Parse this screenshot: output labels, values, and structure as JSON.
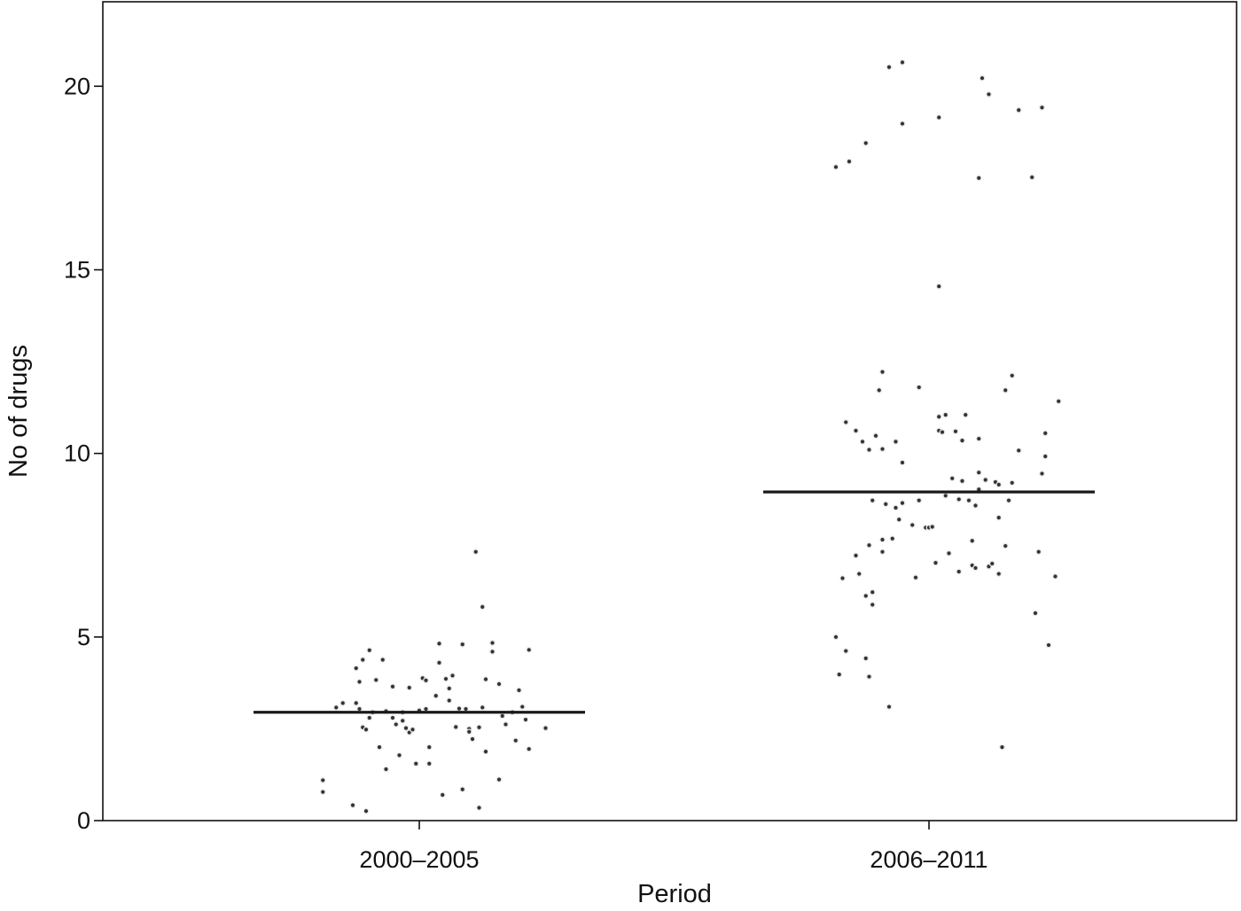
{
  "chart_data": {
    "type": "scatter",
    "title": "",
    "xlabel": "Period",
    "ylabel": "No of drugs",
    "categories": [
      "2000–2005",
      "2006–2011"
    ],
    "ylim": [
      0,
      22.3
    ],
    "y_ticks": [
      0,
      5,
      10,
      15,
      20
    ],
    "y_tick_labels": [
      "0",
      "5",
      "10",
      "15",
      "20"
    ],
    "grid": false,
    "legend": "none",
    "point_color": "#333333",
    "series": [
      {
        "category": "2000–2005",
        "median": 2.95,
        "points": [
          [
            -0.29,
            1.1
          ],
          [
            -0.29,
            0.78
          ],
          [
            -0.25,
            3.08
          ],
          [
            -0.23,
            3.2
          ],
          [
            -0.2,
            0.42
          ],
          [
            -0.19,
            4.15
          ],
          [
            -0.19,
            3.2
          ],
          [
            -0.18,
            3.04
          ],
          [
            -0.18,
            3.78
          ],
          [
            -0.17,
            2.54
          ],
          [
            -0.16,
            2.48
          ],
          [
            -0.17,
            4.38
          ],
          [
            -0.16,
            0.26
          ],
          [
            -0.15,
            4.64
          ],
          [
            -0.15,
            2.8
          ],
          [
            -0.14,
            2.95
          ],
          [
            -0.13,
            3.83
          ],
          [
            -0.12,
            2.0
          ],
          [
            -0.11,
            4.38
          ],
          [
            -0.1,
            2.98
          ],
          [
            -0.1,
            1.4
          ],
          [
            -0.08,
            3.65
          ],
          [
            -0.08,
            2.8
          ],
          [
            -0.07,
            2.62
          ],
          [
            -0.06,
            1.78
          ],
          [
            -0.05,
            2.95
          ],
          [
            -0.05,
            2.72
          ],
          [
            -0.04,
            2.52
          ],
          [
            -0.03,
            3.62
          ],
          [
            -0.03,
            2.4
          ],
          [
            -0.02,
            2.48
          ],
          [
            -0.01,
            1.55
          ],
          [
            0.0,
            3.0
          ],
          [
            0.01,
            3.88
          ],
          [
            0.02,
            3.82
          ],
          [
            0.02,
            3.04
          ],
          [
            0.03,
            1.55
          ],
          [
            0.03,
            2.0
          ],
          [
            0.05,
            3.4
          ],
          [
            0.06,
            4.3
          ],
          [
            0.06,
            4.82
          ],
          [
            0.07,
            0.7
          ],
          [
            0.08,
            3.86
          ],
          [
            0.09,
            3.6
          ],
          [
            0.09,
            3.27
          ],
          [
            0.1,
            3.95
          ],
          [
            0.11,
            2.55
          ],
          [
            0.12,
            3.05
          ],
          [
            0.13,
            0.85
          ],
          [
            0.13,
            4.8
          ],
          [
            0.14,
            3.04
          ],
          [
            0.15,
            2.5
          ],
          [
            0.15,
            2.42
          ],
          [
            0.16,
            2.22
          ],
          [
            0.17,
            7.32
          ],
          [
            0.18,
            0.35
          ],
          [
            0.18,
            2.54
          ],
          [
            0.19,
            3.08
          ],
          [
            0.19,
            5.82
          ],
          [
            0.2,
            1.88
          ],
          [
            0.2,
            3.85
          ],
          [
            0.22,
            4.6
          ],
          [
            0.22,
            4.84
          ],
          [
            0.24,
            1.12
          ],
          [
            0.24,
            3.72
          ],
          [
            0.25,
            2.85
          ],
          [
            0.26,
            2.62
          ],
          [
            0.28,
            2.95
          ],
          [
            0.29,
            2.18
          ],
          [
            0.3,
            3.55
          ],
          [
            0.31,
            3.1
          ],
          [
            0.32,
            2.75
          ],
          [
            0.33,
            1.95
          ],
          [
            0.33,
            4.65
          ],
          [
            0.38,
            2.52
          ]
        ]
      },
      {
        "category": "2006–2011",
        "median": 8.95,
        "points": [
          [
            -0.28,
            5.0
          ],
          [
            -0.28,
            17.8
          ],
          [
            -0.27,
            3.98
          ],
          [
            -0.26,
            6.6
          ],
          [
            -0.25,
            10.85
          ],
          [
            -0.25,
            4.62
          ],
          [
            -0.24,
            17.95
          ],
          [
            -0.22,
            7.22
          ],
          [
            -0.22,
            10.62
          ],
          [
            -0.21,
            6.72
          ],
          [
            -0.2,
            10.32
          ],
          [
            -0.19,
            18.45
          ],
          [
            -0.19,
            6.12
          ],
          [
            -0.19,
            4.42
          ],
          [
            -0.18,
            10.1
          ],
          [
            -0.18,
            3.92
          ],
          [
            -0.18,
            7.5
          ],
          [
            -0.17,
            5.88
          ],
          [
            -0.17,
            6.22
          ],
          [
            -0.17,
            8.72
          ],
          [
            -0.16,
            10.48
          ],
          [
            -0.15,
            11.72
          ],
          [
            -0.14,
            7.65
          ],
          [
            -0.14,
            7.32
          ],
          [
            -0.14,
            12.22
          ],
          [
            -0.14,
            10.12
          ],
          [
            -0.13,
            8.62
          ],
          [
            -0.12,
            3.1
          ],
          [
            -0.12,
            20.52
          ],
          [
            -0.11,
            7.68
          ],
          [
            -0.1,
            8.52
          ],
          [
            -0.1,
            10.32
          ],
          [
            -0.09,
            8.2
          ],
          [
            -0.08,
            8.65
          ],
          [
            -0.08,
            9.75
          ],
          [
            -0.08,
            18.98
          ],
          [
            -0.08,
            20.65
          ],
          [
            -0.05,
            8.05
          ],
          [
            -0.04,
            6.62
          ],
          [
            -0.03,
            11.8
          ],
          [
            -0.03,
            8.72
          ],
          [
            -0.01,
            7.98
          ],
          [
            0.0,
            7.98
          ],
          [
            0.01,
            8.0
          ],
          [
            0.02,
            7.02
          ],
          [
            0.03,
            19.15
          ],
          [
            0.03,
            14.55
          ],
          [
            0.03,
            11.0
          ],
          [
            0.03,
            10.62
          ],
          [
            0.04,
            10.58
          ],
          [
            0.05,
            11.05
          ],
          [
            0.05,
            8.85
          ],
          [
            0.06,
            7.28
          ],
          [
            0.07,
            9.32
          ],
          [
            0.08,
            10.6
          ],
          [
            0.09,
            8.75
          ],
          [
            0.09,
            6.78
          ],
          [
            0.1,
            9.25
          ],
          [
            0.1,
            10.35
          ],
          [
            0.11,
            11.05
          ],
          [
            0.12,
            8.72
          ],
          [
            0.13,
            6.95
          ],
          [
            0.13,
            7.62
          ],
          [
            0.14,
            6.88
          ],
          [
            0.14,
            8.58
          ],
          [
            0.15,
            9.02
          ],
          [
            0.15,
            9.48
          ],
          [
            0.15,
            10.4
          ],
          [
            0.15,
            17.5
          ],
          [
            0.16,
            20.22
          ],
          [
            0.17,
            9.28
          ],
          [
            0.18,
            6.92
          ],
          [
            0.18,
            19.78
          ],
          [
            0.19,
            7.0
          ],
          [
            0.2,
            9.22
          ],
          [
            0.21,
            9.15
          ],
          [
            0.21,
            8.25
          ],
          [
            0.21,
            6.72
          ],
          [
            0.22,
            2.0
          ],
          [
            0.23,
            7.48
          ],
          [
            0.23,
            11.72
          ],
          [
            0.24,
            8.72
          ],
          [
            0.25,
            9.2
          ],
          [
            0.25,
            12.12
          ],
          [
            0.27,
            19.35
          ],
          [
            0.27,
            10.08
          ],
          [
            0.31,
            17.52
          ],
          [
            0.32,
            5.65
          ],
          [
            0.33,
            7.32
          ],
          [
            0.34,
            19.42
          ],
          [
            0.34,
            9.45
          ],
          [
            0.35,
            9.92
          ],
          [
            0.35,
            10.55
          ],
          [
            0.36,
            4.78
          ],
          [
            0.38,
            6.65
          ],
          [
            0.39,
            11.42
          ]
        ]
      }
    ]
  }
}
